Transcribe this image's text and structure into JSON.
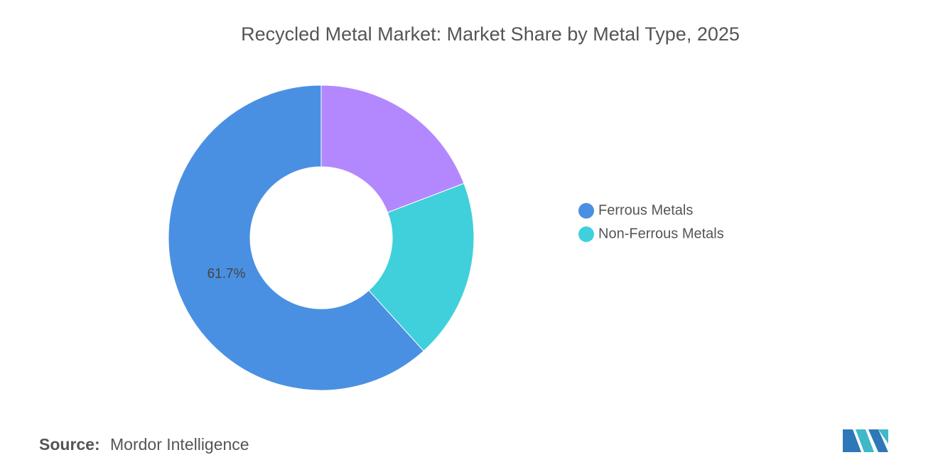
{
  "chart_data": {
    "type": "donut",
    "title": "Recycled Metal Market: Market Share by Metal Type, 2025",
    "categories": [
      "Ferrous Metals",
      "Non-Ferrous Metals",
      null
    ],
    "values": [
      61.7,
      19.1,
      19.2
    ],
    "value_labels": [
      "61.7%",
      null,
      null
    ],
    "colors": [
      "#4a90e2",
      "#40d0db",
      "#b388ff"
    ],
    "legend": "right"
  },
  "footer": {
    "source_label": "Source:",
    "source": "Mordor Intelligence"
  }
}
